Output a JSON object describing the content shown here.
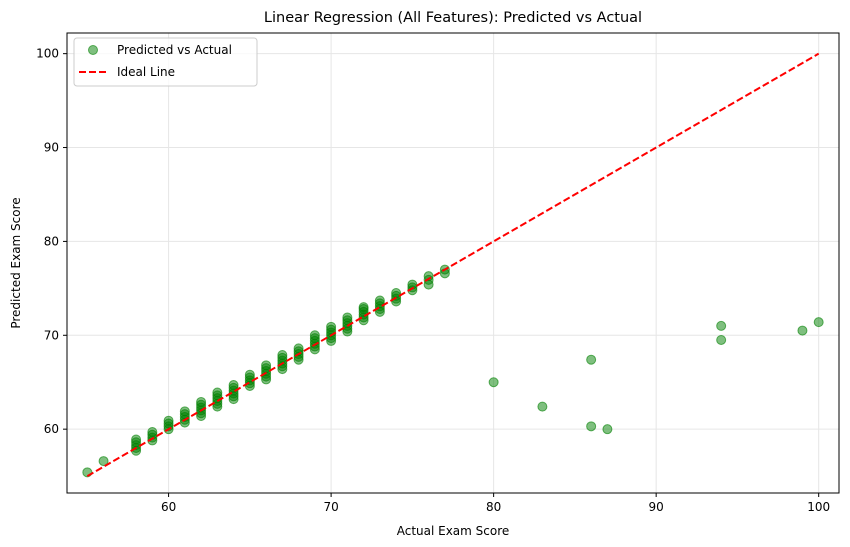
{
  "chart_data": {
    "type": "scatter",
    "title": "Linear Regression (All Features): Predicted vs Actual",
    "xlabel": "Actual Exam Score",
    "ylabel": "Predicted Exam Score",
    "xlim": [
      53.75,
      101.25
    ],
    "ylim": [
      53.2,
      102.2
    ],
    "xticks": [
      60,
      70,
      80,
      90,
      100
    ],
    "yticks": [
      60,
      70,
      80,
      90,
      100
    ],
    "grid": true,
    "legend_position": "top-left",
    "colors": {
      "scatter": "#008000",
      "ideal": "#ff0000"
    },
    "series": [
      {
        "name": "Predicted vs Actual",
        "kind": "scatter",
        "points": [
          [
            55,
            55.4
          ],
          [
            56,
            56.6
          ],
          [
            58,
            57.7
          ],
          [
            58,
            58.0
          ],
          [
            58,
            58.3
          ],
          [
            58,
            58.6
          ],
          [
            58,
            58.9
          ],
          [
            59,
            58.8
          ],
          [
            59,
            59.1
          ],
          [
            59,
            59.4
          ],
          [
            59,
            59.7
          ],
          [
            60,
            60.0
          ],
          [
            60,
            60.3
          ],
          [
            60,
            60.6
          ],
          [
            60,
            60.9
          ],
          [
            61,
            60.7
          ],
          [
            61,
            61.0
          ],
          [
            61,
            61.3
          ],
          [
            61,
            61.6
          ],
          [
            61,
            61.9
          ],
          [
            62,
            61.4
          ],
          [
            62,
            61.7
          ],
          [
            62,
            62.0
          ],
          [
            62,
            62.3
          ],
          [
            62,
            62.6
          ],
          [
            62,
            62.9
          ],
          [
            63,
            62.4
          ],
          [
            63,
            62.7
          ],
          [
            63,
            63.0
          ],
          [
            63,
            63.3
          ],
          [
            63,
            63.6
          ],
          [
            63,
            63.9
          ],
          [
            64,
            63.2
          ],
          [
            64,
            63.5
          ],
          [
            64,
            63.8
          ],
          [
            64,
            64.1
          ],
          [
            64,
            64.4
          ],
          [
            64,
            64.7
          ],
          [
            65,
            64.9
          ],
          [
            65,
            65.2
          ],
          [
            65,
            65.5
          ],
          [
            65,
            65.8
          ],
          [
            65,
            64.6
          ],
          [
            66,
            65.3
          ],
          [
            66,
            65.6
          ],
          [
            66,
            65.9
          ],
          [
            66,
            66.2
          ],
          [
            66,
            66.5
          ],
          [
            66,
            66.8
          ],
          [
            67,
            66.4
          ],
          [
            67,
            66.7
          ],
          [
            67,
            67.0
          ],
          [
            67,
            67.3
          ],
          [
            67,
            67.6
          ],
          [
            67,
            67.9
          ],
          [
            68,
            67.4
          ],
          [
            68,
            67.7
          ],
          [
            68,
            68.0
          ],
          [
            68,
            68.3
          ],
          [
            68,
            68.6
          ],
          [
            69,
            68.5
          ],
          [
            69,
            68.8
          ],
          [
            69,
            69.1
          ],
          [
            69,
            69.4
          ],
          [
            69,
            69.7
          ],
          [
            69,
            70.0
          ],
          [
            70,
            69.4
          ],
          [
            70,
            69.7
          ],
          [
            70,
            70.0
          ],
          [
            70,
            70.3
          ],
          [
            70,
            70.6
          ],
          [
            70,
            70.9
          ],
          [
            71,
            70.4
          ],
          [
            71,
            70.7
          ],
          [
            71,
            71.0
          ],
          [
            71,
            71.3
          ],
          [
            71,
            71.6
          ],
          [
            71,
            71.9
          ],
          [
            72,
            71.6
          ],
          [
            72,
            71.9
          ],
          [
            72,
            72.2
          ],
          [
            72,
            72.5
          ],
          [
            72,
            72.8
          ],
          [
            72,
            73.0
          ],
          [
            73,
            72.5
          ],
          [
            73,
            72.8
          ],
          [
            73,
            73.1
          ],
          [
            73,
            73.4
          ],
          [
            73,
            73.7
          ],
          [
            74,
            73.6
          ],
          [
            74,
            73.9
          ],
          [
            74,
            74.2
          ],
          [
            74,
            74.5
          ],
          [
            75,
            74.8
          ],
          [
            75,
            75.1
          ],
          [
            75,
            75.4
          ],
          [
            76,
            75.4
          ],
          [
            76,
            75.9
          ],
          [
            76,
            76.3
          ],
          [
            77,
            76.6
          ],
          [
            77,
            77.0
          ],
          [
            80,
            65.0
          ],
          [
            83,
            62.4
          ],
          [
            86,
            67.4
          ],
          [
            86,
            60.3
          ],
          [
            87,
            60.0
          ],
          [
            94,
            71.0
          ],
          [
            94,
            69.5
          ],
          [
            99,
            70.5
          ],
          [
            100,
            71.4
          ]
        ]
      },
      {
        "name": "Ideal Line",
        "kind": "line",
        "dashed": true,
        "points": [
          [
            55,
            55
          ],
          [
            100,
            100
          ]
        ]
      }
    ]
  }
}
